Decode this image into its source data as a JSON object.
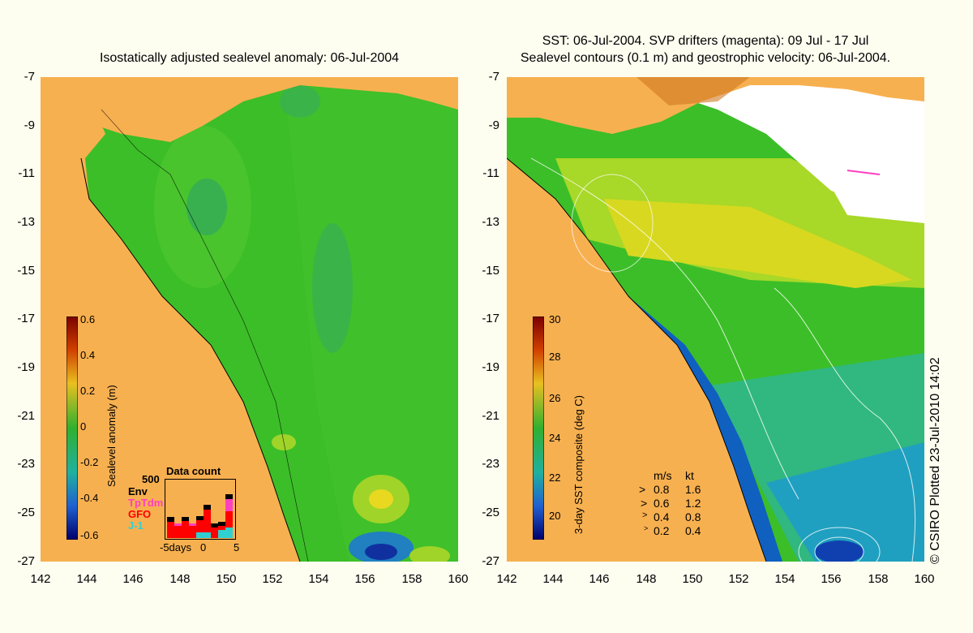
{
  "left_panel": {
    "title": "Isostatically adjusted sealevel anomaly: 06-Jul-2004",
    "colorbar_label": "Sealevel anomaly (m)",
    "colorbar_ticks": [
      "0.6",
      "0.4",
      "0.2",
      "0",
      "-0.2",
      "-0.4",
      "-0.6"
    ],
    "data_count": {
      "title": "Data count",
      "scale": "500",
      "missions": [
        {
          "name": "Env",
          "color": "#000000"
        },
        {
          "name": "TpTdm",
          "color": "#ff40c0"
        },
        {
          "name": "GFO",
          "color": "#ff0000"
        },
        {
          "name": "J-1",
          "color": "#30d0d0"
        }
      ],
      "xlabels": [
        "-5days",
        "0",
        "5"
      ]
    }
  },
  "right_panel": {
    "title_line1": "SST: 06-Jul-2004. SVP drifters (magenta): 09 Jul - 17 Jul",
    "title_line2": "Sealevel contours (0.1 m) and geostrophic velocity: 06-Jul-2004.",
    "colorbar_label": "3-day SST composite (deg C)",
    "colorbar_ticks": [
      "30",
      "28",
      "26",
      "24",
      "22",
      "20"
    ],
    "speed_legend": {
      "header_ms": "m/s",
      "header_kt": "kt",
      "rows": [
        {
          "ms": "0.8",
          "kt": "1.6"
        },
        {
          "ms": "0.6",
          "kt": "1.2"
        },
        {
          "ms": "0.4",
          "kt": "0.8"
        },
        {
          "ms": "0.2",
          "kt": "0.4"
        }
      ]
    }
  },
  "y_ticks": [
    "-7",
    "-9",
    "-11",
    "-13",
    "-15",
    "-17",
    "-19",
    "-21",
    "-23",
    "-25",
    "-27"
  ],
  "x_ticks": [
    "142",
    "144",
    "146",
    "148",
    "150",
    "152",
    "154",
    "156",
    "158",
    "160"
  ],
  "credit": "© CSIRO Plotted 23-Jul-2010 14:02",
  "colors": {
    "land": "#f7b050",
    "background": "#fdfdf0",
    "sla_mid": "#3cbe28",
    "cloud": "#ffffff"
  }
}
